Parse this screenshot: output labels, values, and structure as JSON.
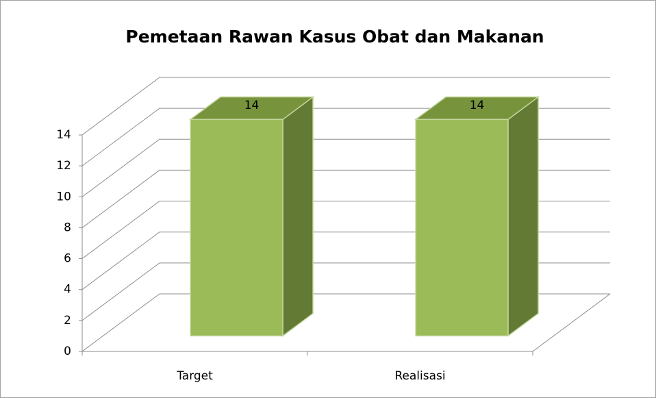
{
  "chart_data": {
    "type": "bar",
    "title": "Pemetaan Rawan Kasus Obat dan Makanan",
    "categories": [
      "Target",
      "Realisasi"
    ],
    "values": [
      14,
      14
    ],
    "color": "#9bbb59",
    "ylim": [
      0,
      14
    ],
    "yticks": [
      0,
      2,
      4,
      6,
      8,
      10,
      12,
      14
    ],
    "grid": true
  }
}
